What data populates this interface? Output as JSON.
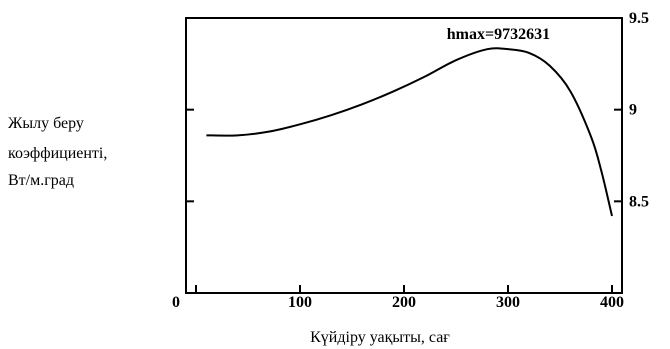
{
  "chart_data": {
    "type": "line",
    "ylabel_lines": [
      "Жылу беру",
      "коэффициенті,",
      "Вт/м.град"
    ],
    "xlabel": "Күйдіру уақыты, сағ",
    "xlim": [
      0,
      400
    ],
    "ylim": [
      8.0,
      9.5
    ],
    "x_ticks": [
      0,
      100,
      200,
      300,
      400
    ],
    "y_ticks": [
      8.5,
      9,
      9.5
    ],
    "y_tick_labels": [
      "8.5",
      "9",
      "9.5"
    ],
    "y_axis_side": "right",
    "grid": false,
    "annotation": {
      "text": "hmax=9732631",
      "x": 285,
      "y": 9.33
    },
    "series": [
      {
        "color": "#000000",
        "x": [
          10,
          40,
          70,
          100,
          130,
          160,
          190,
          220,
          250,
          280,
          300,
          320,
          340,
          360,
          380,
          390,
          400
        ],
        "y": [
          8.86,
          8.86,
          8.88,
          8.92,
          8.97,
          9.03,
          9.1,
          9.18,
          9.27,
          9.33,
          9.33,
          9.31,
          9.24,
          9.1,
          8.85,
          8.66,
          8.42
        ]
      }
    ]
  }
}
